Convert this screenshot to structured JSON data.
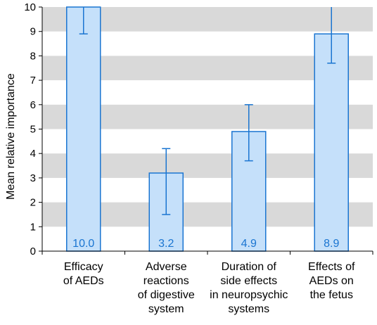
{
  "chart_data": {
    "type": "bar",
    "ylabel": "Mean relative importance",
    "ylim": [
      0,
      10
    ],
    "yticks": [
      "0",
      "1",
      "2",
      "3",
      "4",
      "5",
      "6",
      "7",
      "8",
      "9",
      "10"
    ],
    "grid": "alternating horizontal gray bands",
    "categories": [
      [
        "Efficacy",
        "of AEDs"
      ],
      [
        "Adverse",
        "reactions",
        "of digestive",
        "system"
      ],
      [
        "Duration of",
        "side effects",
        "in neuropsychic",
        "systems"
      ],
      [
        "Effects of",
        "AEDs on",
        "the fetus"
      ]
    ],
    "values": [
      10.0,
      3.2,
      4.9,
      8.9
    ],
    "value_labels": [
      "10.0",
      "3.2",
      "4.9",
      "8.9"
    ],
    "error_low": [
      8.9,
      1.5,
      3.7,
      7.7
    ],
    "error_high": [
      10.0,
      4.2,
      6.0,
      10.0
    ],
    "colors": {
      "bar_fill": "#c5e0fa",
      "bar_stroke": "#1a75d1",
      "error_bar": "#1a75d1",
      "value_label": "#1a75d1",
      "band": "#d9d9d9"
    }
  }
}
